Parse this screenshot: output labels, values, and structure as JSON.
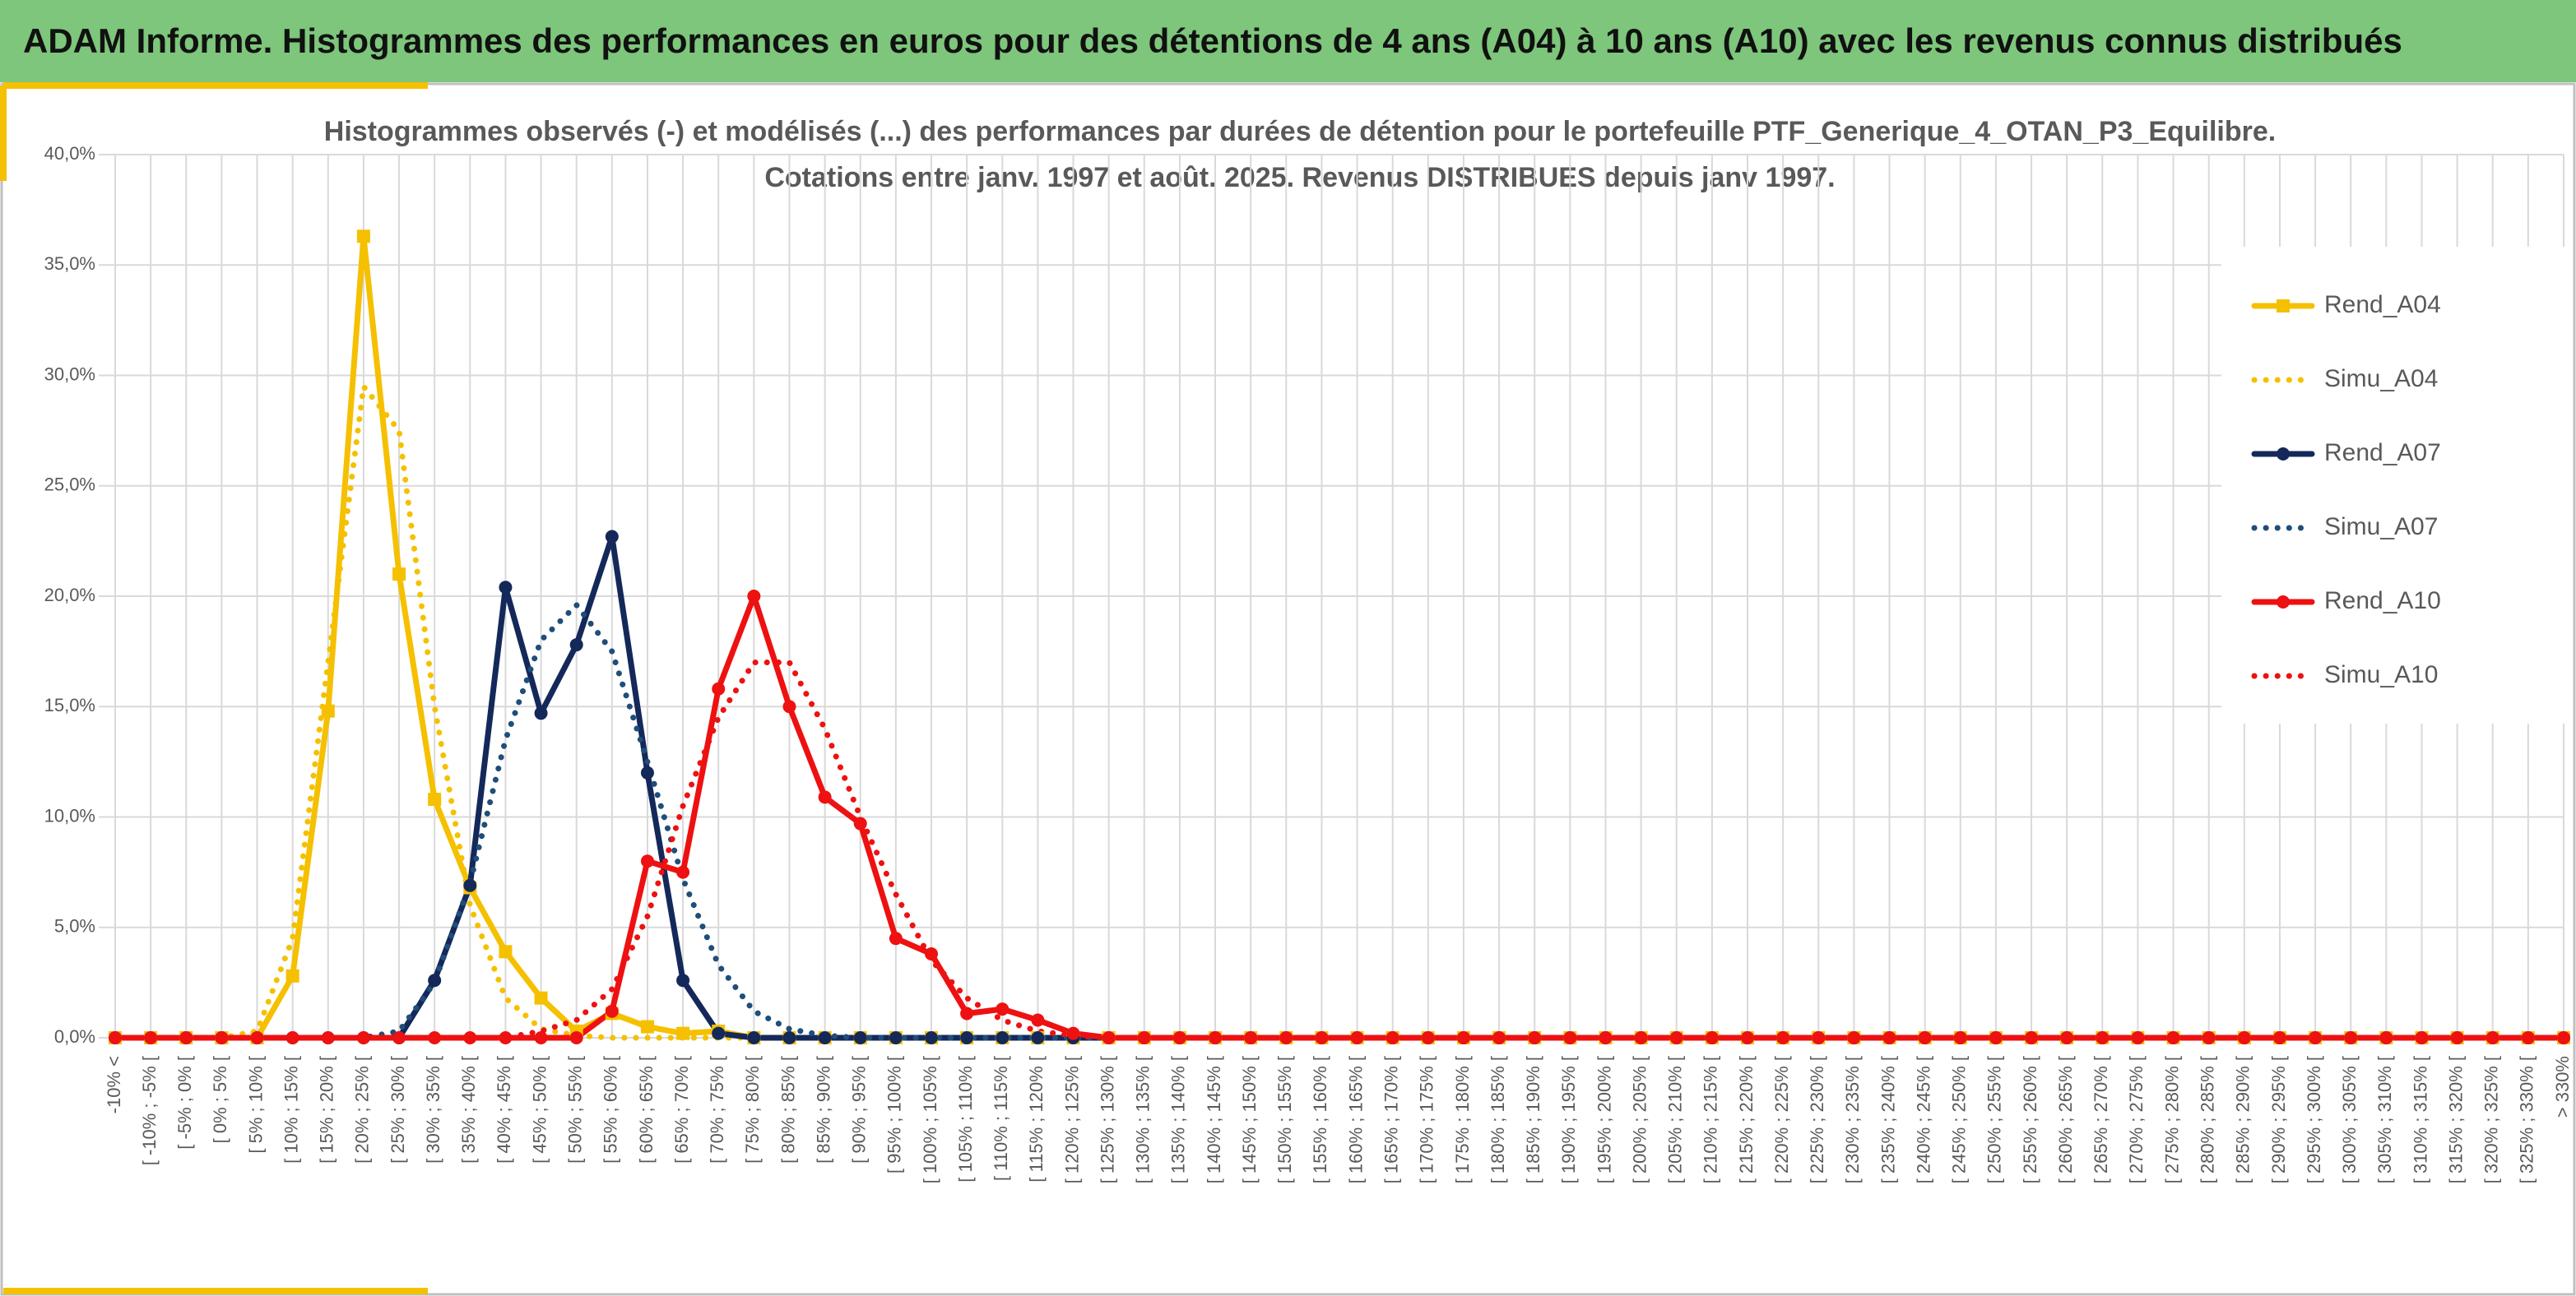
{
  "header": {
    "title": "ADAM Informe. Histogrammes des performances en euros pour des détentions de 4 ans (A04) à 10 ans (A10) avec les revenus connus distribués"
  },
  "chart_data": {
    "type": "line",
    "title": [
      "Histogrammes observés (-) et modélisés (...) des performances par durées de détention pour le portefeuille PTF_Generique_4_OTAN_P3_Equilibre.",
      "Cotations entre janv. 1997 et août. 2025. Revenus DISTRIBUES depuis janv 1997."
    ],
    "categories": [
      "-10% <",
      "[ -10% ; -5% [",
      "[ -5% ; 0% [",
      "[ 0% ; 5% [",
      "[ 5% ; 10% [",
      "[ 10% ; 15% [",
      "[ 15% ; 20% [",
      "[ 20% ; 25% [",
      "[ 25% ; 30% [",
      "[ 30% ; 35% [",
      "[ 35% ; 40% [",
      "[ 40% ; 45% [",
      "[ 45% ; 50% [",
      "[ 50% ; 55% [",
      "[ 55% ; 60% [",
      "[ 60% ; 65% [",
      "[ 65% ; 70% [",
      "[ 70% ; 75% [",
      "[ 75% ; 80% [",
      "[ 80% ; 85% [",
      "[ 85% ; 90% [",
      "[ 90% ; 95% [",
      "[ 95% ; 100% [",
      "[ 100% ; 105% [",
      "[ 105% ; 110% [",
      "[ 110% ; 115% [",
      "[ 115% ; 120% [",
      "[ 120% ; 125% [",
      "[ 125% ; 130% [",
      "[ 130% ; 135% [",
      "[ 135% ; 140% [",
      "[ 140% ; 145% [",
      "[ 145% ; 150% [",
      "[ 150% ; 155% [",
      "[ 155% ; 160% [",
      "[ 160% ; 165% [",
      "[ 165% ; 170% [",
      "[ 170% ; 175% [",
      "[ 175% ; 180% [",
      "[ 180% ; 185% [",
      "[ 185% ; 190% [",
      "[ 190% ; 195% [",
      "[ 195% ; 200% [",
      "[ 200% ; 205% [",
      "[ 205% ; 210% [",
      "[ 210% ; 215% [",
      "[ 215% ; 220% [",
      "[ 220% ; 225% [",
      "[ 225% ; 230% [",
      "[ 230% ; 235% [",
      "[ 235% ; 240% [",
      "[ 240% ; 245% [",
      "[ 245% ; 250% [",
      "[ 250% ; 255% [",
      "[ 255% ; 260% [",
      "[ 260% ; 265% [",
      "[ 265% ; 270% [",
      "[ 270% ; 275% [",
      "[ 275% ; 280% [",
      "[ 280% ; 285% [",
      "[ 285% ; 290% [",
      "[ 290% ; 295% [",
      "[ 295% ; 300% [",
      "[ 300% ; 305% [",
      "[ 305% ; 310% [",
      "[ 310% ; 315% [",
      "[ 315% ; 320% [",
      "[ 320% ; 325% [",
      "[ 325% ; 330% [",
      "> 330%"
    ],
    "series": [
      {
        "name": "Rend_A04",
        "color": "#f5c000",
        "dotted": false,
        "marker": "square",
        "values": [
          0,
          0,
          0,
          0,
          0,
          2.8,
          14.8,
          36.3,
          21,
          10.8,
          6.8,
          3.9,
          1.8,
          0.3,
          1.1,
          0.5,
          0.2,
          0.3,
          0,
          0,
          0,
          0,
          0,
          0,
          0,
          0,
          0,
          0,
          0,
          0,
          0,
          0,
          0,
          0,
          0,
          0,
          0,
          0,
          0,
          0,
          0,
          0,
          0,
          0,
          0,
          0,
          0,
          0,
          0,
          0,
          0,
          0,
          0,
          0,
          0,
          0,
          0,
          0,
          0,
          0,
          0,
          0,
          0,
          0,
          0,
          0,
          0,
          0,
          0,
          0
        ]
      },
      {
        "name": "Simu_A04",
        "color": "#f5c000",
        "dotted": true,
        "marker": null,
        "values": [
          0,
          0,
          0,
          0,
          0.3,
          4.5,
          17,
          29.5,
          27.5,
          15,
          6,
          1.8,
          0.4,
          0.1,
          0,
          0,
          0,
          0,
          0,
          0,
          0,
          0,
          0,
          0,
          0,
          0,
          0,
          0,
          0,
          0,
          0,
          0,
          0,
          0,
          0,
          0,
          0,
          0,
          0,
          0,
          0,
          0,
          0,
          0,
          0,
          0,
          0,
          0,
          0,
          0,
          0,
          0,
          0,
          0,
          0,
          0,
          0,
          0,
          0,
          0,
          0,
          0,
          0,
          0,
          0,
          0,
          0,
          0,
          0,
          0
        ]
      },
      {
        "name": "Rend_A07",
        "color": "#14285a",
        "dotted": false,
        "marker": "circle",
        "values": [
          0,
          0,
          0,
          0,
          0,
          0,
          0,
          0,
          0,
          2.6,
          6.9,
          20.4,
          14.7,
          17.8,
          22.7,
          12,
          2.6,
          0.2,
          0,
          0,
          0,
          0,
          0,
          0,
          0,
          0,
          0,
          0,
          0,
          0,
          0,
          0,
          0,
          0,
          0,
          0,
          0,
          0,
          0,
          0,
          0,
          0,
          0,
          0,
          0,
          0,
          0,
          0,
          0,
          0,
          0,
          0,
          0,
          0,
          0,
          0,
          0,
          0,
          0,
          0,
          0,
          0,
          0,
          0,
          0,
          0,
          0,
          0,
          0,
          0
        ]
      },
      {
        "name": "Simu_A07",
        "color": "#1f4e79",
        "dotted": true,
        "marker": null,
        "values": [
          0,
          0,
          0,
          0,
          0,
          0,
          0,
          0,
          0.3,
          2.5,
          7,
          13.5,
          18,
          19.6,
          17.5,
          12.5,
          7.2,
          3.3,
          1.2,
          0.4,
          0.1,
          0,
          0,
          0,
          0,
          0,
          0,
          0,
          0,
          0,
          0,
          0,
          0,
          0,
          0,
          0,
          0,
          0,
          0,
          0,
          0,
          0,
          0,
          0,
          0,
          0,
          0,
          0,
          0,
          0,
          0,
          0,
          0,
          0,
          0,
          0,
          0,
          0,
          0,
          0,
          0,
          0,
          0,
          0,
          0,
          0,
          0,
          0,
          0,
          0
        ]
      },
      {
        "name": "Rend_A10",
        "color": "#ee1111",
        "dotted": false,
        "marker": "circle",
        "values": [
          0,
          0,
          0,
          0,
          0,
          0,
          0,
          0,
          0,
          0,
          0,
          0,
          0,
          0,
          1.2,
          8,
          7.5,
          15.8,
          20,
          15,
          10.9,
          9.7,
          4.5,
          3.8,
          1.1,
          1.3,
          0.8,
          0.2,
          0,
          0,
          0,
          0,
          0,
          0,
          0,
          0,
          0,
          0,
          0,
          0,
          0,
          0,
          0,
          0,
          0,
          0,
          0,
          0,
          0,
          0,
          0,
          0,
          0,
          0,
          0,
          0,
          0,
          0,
          0,
          0,
          0,
          0,
          0,
          0,
          0,
          0,
          0,
          0,
          0,
          0
        ]
      },
      {
        "name": "Simu_A10",
        "color": "#ee1111",
        "dotted": true,
        "marker": null,
        "values": [
          0,
          0,
          0,
          0,
          0,
          0,
          0,
          0,
          0,
          0,
          0,
          0,
          0.3,
          0.8,
          2.2,
          5.5,
          10.5,
          14.5,
          17,
          17,
          14,
          10,
          6.5,
          3.5,
          1.8,
          0.8,
          0.3,
          0.1,
          0,
          0,
          0,
          0,
          0,
          0,
          0,
          0,
          0,
          0,
          0,
          0,
          0,
          0,
          0,
          0,
          0,
          0,
          0,
          0,
          0,
          0,
          0,
          0,
          0,
          0,
          0,
          0,
          0,
          0,
          0,
          0,
          0,
          0,
          0,
          0,
          0,
          0,
          0,
          0,
          0,
          0
        ]
      }
    ],
    "ylim": [
      0,
      40
    ],
    "yticks": [
      {
        "value": 0,
        "label": "0,0%"
      },
      {
        "value": 5,
        "label": "5,0%"
      },
      {
        "value": 10,
        "label": "10,0%"
      },
      {
        "value": 15,
        "label": "15,0%"
      },
      {
        "value": 20,
        "label": "20,0%"
      },
      {
        "value": 25,
        "label": "25,0%"
      },
      {
        "value": 30,
        "label": "30,0%"
      },
      {
        "value": 35,
        "label": "35,0%"
      },
      {
        "value": 40,
        "label": "40,0%"
      }
    ],
    "grid": true,
    "legend": "right"
  }
}
